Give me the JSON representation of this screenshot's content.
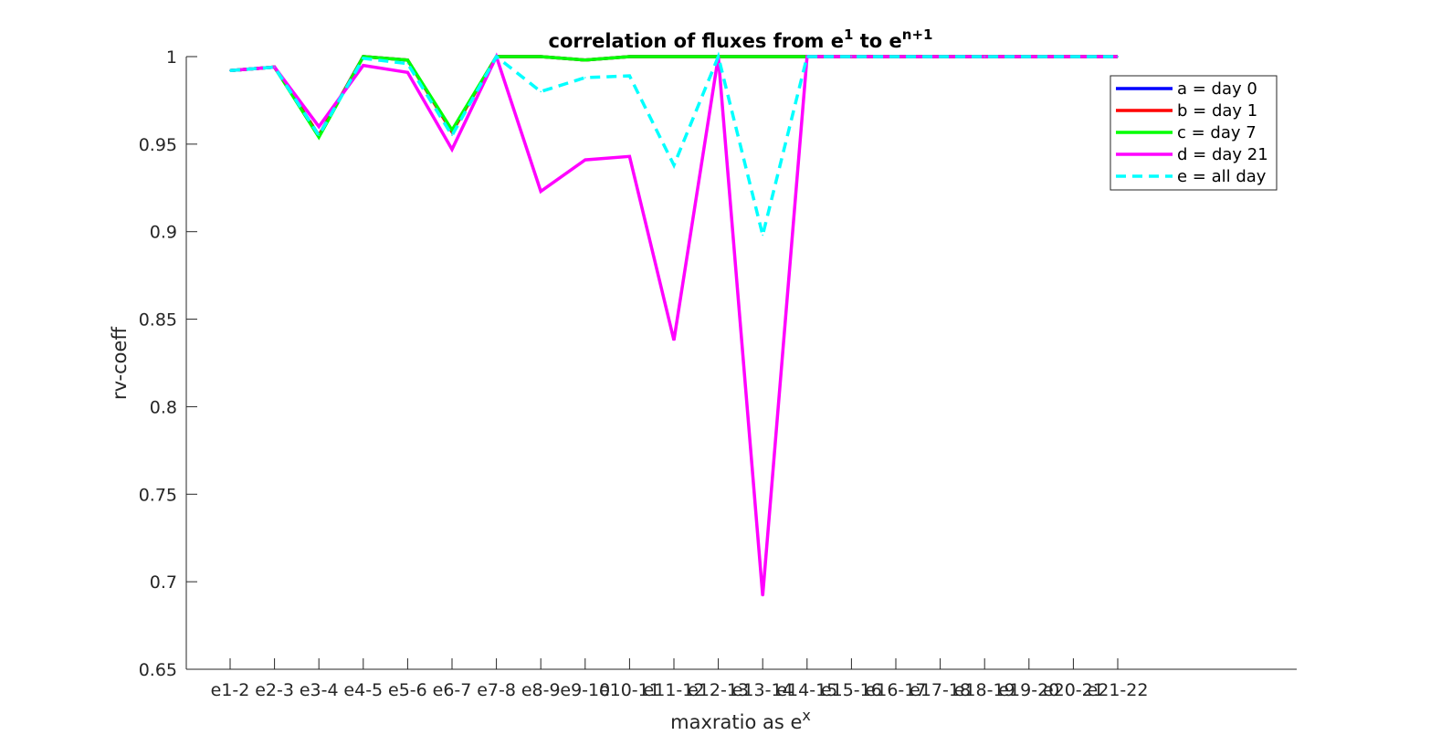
{
  "chart_data": {
    "type": "line",
    "title_main": "correlation of fluxes from e",
    "title_sup1": "1",
    "title_mid": " to e",
    "title_sup2": "n+1",
    "xlabel_main": "maxratio as e",
    "xlabel_sup": "x",
    "ylabel": "rv-coeff",
    "ylim": [
      0.65,
      1
    ],
    "yticks": [
      0.65,
      0.7,
      0.75,
      0.8,
      0.85,
      0.9,
      0.95,
      1
    ],
    "ytick_labels": [
      "0.65",
      "0.7",
      "0.75",
      "0.8",
      "0.85",
      "0.9",
      "0.95",
      "1"
    ],
    "categories": [
      "e1-2",
      "e2-3",
      "e3-4",
      "e4-5",
      "e5-6",
      "e6-7",
      "e7-8",
      "e8-9",
      "e9-10",
      "e10-11",
      "e11-12",
      "e12-13",
      "e13-14",
      "e14-15",
      "e15-16",
      "e16-17",
      "e17-18",
      "e18-19",
      "e19-20",
      "e20-21",
      "e21-22"
    ],
    "grid": false,
    "legend_position": "top-right",
    "series": [
      {
        "name": "a = day 0",
        "color": "#0000ff",
        "dash": "solid",
        "values": [
          0.992,
          0.994,
          0.955,
          1.0,
          0.998,
          0.957,
          1.0,
          1.0,
          0.998,
          1.0,
          1.0,
          1.0,
          1.0,
          1.0,
          1.0,
          1.0,
          1.0,
          1.0,
          1.0,
          1.0,
          1.0
        ]
      },
      {
        "name": "b = day 1",
        "color": "#ff0000",
        "dash": "solid",
        "values": [
          0.992,
          0.994,
          0.955,
          1.0,
          0.998,
          0.957,
          1.0,
          1.0,
          0.998,
          1.0,
          1.0,
          1.0,
          1.0,
          1.0,
          1.0,
          1.0,
          1.0,
          1.0,
          1.0,
          1.0,
          1.0
        ]
      },
      {
        "name": "c = day 7",
        "color": "#00ff00",
        "dash": "solid",
        "values": [
          0.992,
          0.994,
          0.954,
          1.0,
          0.998,
          0.958,
          1.0,
          1.0,
          0.998,
          1.0,
          1.0,
          1.0,
          1.0,
          1.0,
          1.0,
          1.0,
          1.0,
          1.0,
          1.0,
          1.0,
          1.0
        ]
      },
      {
        "name": "d = day 21",
        "color": "#ff00ff",
        "dash": "solid",
        "values": [
          0.992,
          0.994,
          0.96,
          0.995,
          0.991,
          0.947,
          1.0,
          0.923,
          0.941,
          0.943,
          0.838,
          1.0,
          0.692,
          1.0,
          1.0,
          1.0,
          1.0,
          1.0,
          1.0,
          1.0,
          1.0
        ]
      },
      {
        "name": "e = all day",
        "color": "#00ffff",
        "dash": "dashed",
        "values": [
          0.992,
          0.994,
          0.955,
          0.999,
          0.996,
          0.955,
          1.0,
          0.98,
          0.988,
          0.989,
          0.938,
          1.0,
          0.898,
          1.0,
          1.0,
          1.0,
          1.0,
          1.0,
          1.0,
          1.0,
          1.0
        ]
      }
    ]
  }
}
